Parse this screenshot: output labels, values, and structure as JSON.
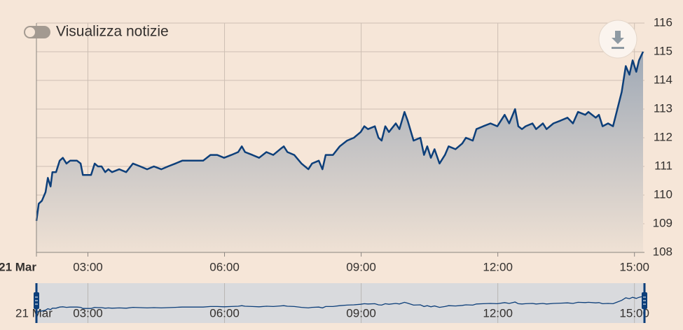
{
  "controls": {
    "toggle_label": "Visualizza notizie"
  },
  "chart_data": {
    "type": "area-line",
    "x": [
      1.87,
      1.92,
      1.99,
      2.07,
      2.12,
      2.18,
      2.22,
      2.3,
      2.38,
      2.45,
      2.53,
      2.61,
      2.76,
      2.84,
      2.89,
      2.99,
      3.07,
      3.15,
      3.22,
      3.3,
      3.38,
      3.45,
      3.53,
      3.69,
      3.84,
      3.99,
      4.15,
      4.3,
      4.45,
      4.61,
      4.76,
      4.92,
      5.07,
      5.22,
      5.38,
      5.53,
      5.69,
      5.84,
      5.99,
      6.15,
      6.3,
      6.38,
      6.45,
      6.61,
      6.76,
      6.92,
      7.07,
      7.22,
      7.3,
      7.38,
      7.53,
      7.69,
      7.84,
      7.92,
      8.07,
      8.15,
      8.22,
      8.38,
      8.53,
      8.69,
      8.84,
      8.99,
      9.07,
      9.15,
      9.3,
      9.38,
      9.45,
      9.53,
      9.61,
      9.76,
      9.84,
      9.95,
      10.02,
      10.15,
      10.3,
      10.38,
      10.45,
      10.53,
      10.61,
      10.72,
      10.84,
      10.92,
      11.07,
      11.22,
      11.3,
      11.45,
      11.53,
      11.68,
      11.84,
      11.99,
      12.15,
      12.25,
      12.38,
      12.45,
      12.53,
      12.61,
      12.76,
      12.84,
      12.99,
      13.07,
      13.22,
      13.38,
      13.53,
      13.65,
      13.76,
      13.92,
      13.99,
      14.15,
      14.22,
      14.3,
      14.42,
      14.53,
      14.61,
      14.72,
      14.81,
      14.89,
      14.96,
      15.04,
      15.1,
      15.19
    ],
    "values": [
      109.1,
      109.7,
      109.8,
      110.1,
      110.6,
      110.3,
      110.8,
      110.8,
      111.2,
      111.3,
      111.1,
      111.2,
      111.2,
      111.1,
      110.7,
      110.7,
      110.7,
      111.1,
      111.0,
      111.0,
      110.8,
      110.9,
      110.8,
      110.9,
      110.8,
      111.1,
      111.0,
      110.9,
      111.0,
      110.9,
      111.0,
      111.1,
      111.2,
      111.2,
      111.2,
      111.2,
      111.4,
      111.4,
      111.3,
      111.4,
      111.5,
      111.7,
      111.5,
      111.4,
      111.3,
      111.5,
      111.4,
      111.6,
      111.7,
      111.5,
      111.4,
      111.1,
      110.9,
      111.1,
      111.2,
      110.9,
      111.4,
      111.4,
      111.7,
      111.9,
      112.0,
      112.2,
      112.4,
      112.3,
      112.4,
      112.0,
      111.9,
      112.4,
      112.2,
      112.5,
      112.3,
      112.9,
      112.6,
      111.9,
      112.0,
      111.4,
      111.7,
      111.3,
      111.6,
      111.1,
      111.4,
      111.7,
      111.6,
      111.8,
      112.0,
      111.9,
      112.3,
      112.4,
      112.5,
      112.4,
      112.8,
      112.5,
      113.0,
      112.4,
      112.3,
      112.4,
      112.5,
      112.3,
      112.5,
      112.3,
      112.5,
      112.6,
      112.7,
      112.5,
      112.9,
      112.8,
      112.9,
      112.7,
      112.8,
      112.4,
      112.5,
      112.4,
      112.9,
      113.6,
      114.5,
      114.2,
      114.7,
      114.3,
      114.7,
      115.0
    ],
    "color": "#0d3f7a",
    "xlim": [
      1.87,
      15.22
    ],
    "xticks": [
      {
        "value": 1.87,
        "label": "21 Mar"
      },
      {
        "value": 3,
        "label": "03:00"
      },
      {
        "value": 6,
        "label": "06:00"
      },
      {
        "value": 9,
        "label": "09:00"
      },
      {
        "value": 12,
        "label": "12:00"
      },
      {
        "value": 15,
        "label": "15:00"
      }
    ],
    "ylim": [
      108,
      116
    ],
    "yticks": [
      108,
      109,
      110,
      111,
      112,
      113,
      114,
      115,
      116
    ],
    "grid": true
  }
}
